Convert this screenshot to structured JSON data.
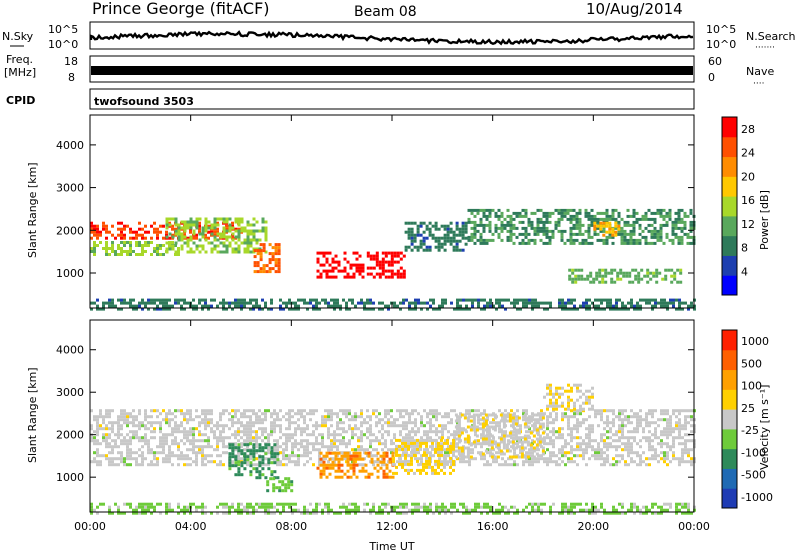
{
  "header": {
    "station": "Prince George (fitACF)",
    "beam": "Beam 08",
    "date": "10/Aug/2014"
  },
  "strips": {
    "nsky": {
      "label": "N.Sky",
      "ticks": [
        "10^5",
        "10^0"
      ]
    },
    "nsearch": {
      "label": "N.Search",
      "ticks": [
        "10^5",
        "10^0"
      ],
      "dots": "·······"
    },
    "freq": {
      "label_line1": "Freq.",
      "label_line2": "[MHz]",
      "ticks": [
        "18",
        "8"
      ]
    },
    "nave": {
      "label": "Nave",
      "ticks": [
        "60",
        "0"
      ],
      "dots": "····"
    },
    "cpid": {
      "label": "CPID",
      "program": "twofsound 3503"
    }
  },
  "colors": {
    "power": [
      "#0000ff",
      "#1d3fb0",
      "#2e7a5a",
      "#59a85c",
      "#a8d82a",
      "#ffc800",
      "#ff8c00",
      "#ff5000",
      "#ff0000"
    ],
    "velocity": [
      "#1f3cb4",
      "#1f6ab4",
      "#2e8a5a",
      "#6ecb3a",
      "#c8c8c8",
      "#ffd000",
      "#ffa000",
      "#ff6000",
      "#ff2000"
    ]
  },
  "chart_data": [
    {
      "type": "heatmap",
      "name": "power",
      "xlabel": "Time UT",
      "ylabel": "Slant Range [km]",
      "xticks": [
        "00:00",
        "04:00",
        "08:00",
        "12:00",
        "16:00",
        "20:00",
        "00:00"
      ],
      "yticks": [
        1000,
        2000,
        3000,
        4000
      ],
      "ylim": [
        180,
        4700
      ],
      "xlim": [
        0,
        24
      ],
      "colorbar": {
        "label": "Power [dB]",
        "ticks": [
          "4",
          "8",
          "12",
          "16",
          "20",
          "24",
          "28"
        ],
        "range": [
          0,
          30
        ]
      },
      "regions": [
        {
          "t": [
            0.0,
            6.0
          ],
          "r": [
            1800,
            2200
          ],
          "v": 26
        },
        {
          "t": [
            0.0,
            3.5
          ],
          "r": [
            1450,
            1750
          ],
          "v": 14
        },
        {
          "t": [
            3.0,
            7.0
          ],
          "r": [
            1500,
            2300
          ],
          "v": 14
        },
        {
          "t": [
            6.5,
            7.5
          ],
          "r": [
            1000,
            1700
          ],
          "v": 24
        },
        {
          "t": [
            9.0,
            10.8
          ],
          "r": [
            900,
            1500
          ],
          "v": 29
        },
        {
          "t": [
            11.0,
            12.5
          ],
          "r": [
            900,
            1500
          ],
          "v": 29
        },
        {
          "t": [
            12.5,
            15.0
          ],
          "r": [
            1500,
            2200
          ],
          "v": 8
        },
        {
          "t": [
            15.0,
            24.0
          ],
          "r": [
            1700,
            2500
          ],
          "v": 10
        },
        {
          "t": [
            19.0,
            23.5
          ],
          "r": [
            800,
            1100
          ],
          "v": 12
        },
        {
          "t": [
            20.0,
            21.0
          ],
          "r": [
            1900,
            2200
          ],
          "v": 20
        },
        {
          "t": [
            0.0,
            24.0
          ],
          "r": [
            180,
            400
          ],
          "v": 8
        }
      ]
    },
    {
      "type": "heatmap",
      "name": "velocity",
      "xlabel": "Time UT",
      "ylabel": "Slant Range [km]",
      "xticks": [
        "00:00",
        "04:00",
        "08:00",
        "12:00",
        "16:00",
        "20:00",
        "00:00"
      ],
      "yticks": [
        1000,
        2000,
        3000,
        4000
      ],
      "ylim": [
        180,
        4700
      ],
      "xlim": [
        0,
        24
      ],
      "colorbar": {
        "label": "Velocity [m s⁻¹]",
        "ticks": [
          "1000",
          "500",
          "100",
          "25",
          "-25",
          "-100",
          "-500",
          "-1000"
        ],
        "range": [
          -1200,
          1200
        ]
      },
      "regions": [
        {
          "t": [
            0.0,
            24.0
          ],
          "r": [
            1300,
            2600
          ],
          "v": 0
        },
        {
          "t": [
            5.5,
            7.5
          ],
          "r": [
            1000,
            1800
          ],
          "v": -500
        },
        {
          "t": [
            7.0,
            8.0
          ],
          "r": [
            700,
            1000
          ],
          "v": -300
        },
        {
          "t": [
            9.0,
            12.0
          ],
          "r": [
            1000,
            1600
          ],
          "v": 600
        },
        {
          "t": [
            12.0,
            14.5
          ],
          "r": [
            1100,
            1900
          ],
          "v": 200
        },
        {
          "t": [
            14.5,
            18.0
          ],
          "r": [
            1500,
            2500
          ],
          "v": 80
        },
        {
          "t": [
            18.0,
            20.0
          ],
          "r": [
            2600,
            3200
          ],
          "v": 100
        },
        {
          "t": [
            0.0,
            24.0
          ],
          "r": [
            180,
            400
          ],
          "v": -200
        }
      ]
    }
  ]
}
